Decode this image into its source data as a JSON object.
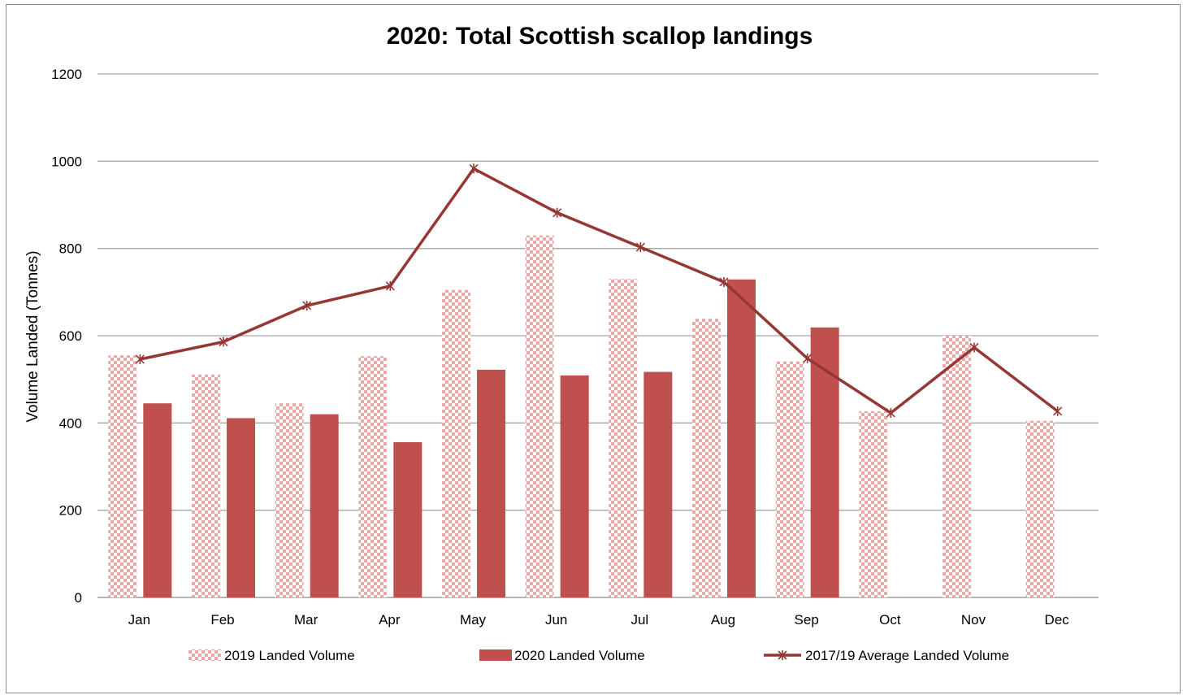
{
  "chart_data": {
    "type": "bar",
    "title": "2020: Total Scottish scallop landings",
    "ylabel": "Volume Landed (Tonnes)",
    "xlabel": "",
    "ylim": [
      0,
      1200
    ],
    "yticks": [
      0,
      200,
      400,
      600,
      800,
      1000,
      1200
    ],
    "grid": true,
    "legend_position": "bottom",
    "categories": [
      "Jan",
      "Feb",
      "Mar",
      "Apr",
      "May",
      "Jun",
      "Jul",
      "Aug",
      "Sep",
      "Oct",
      "Nov",
      "Dec"
    ],
    "series": [
      {
        "name": "2019  Landed Volume",
        "type": "bar",
        "pattern": "checkerboard",
        "color": "#e8a9a7",
        "values": [
          555,
          511,
          445,
          553,
          705,
          830,
          730,
          639,
          541,
          427,
          600,
          405
        ]
      },
      {
        "name": "2020 Landed Volume",
        "type": "bar",
        "color": "#c0504d",
        "values": [
          445,
          411,
          420,
          356,
          522,
          509,
          517,
          729,
          619,
          null,
          null,
          null
        ]
      },
      {
        "name": "2017/19 Average Landed Volume",
        "type": "line",
        "marker": "star",
        "color": "#953735",
        "values": [
          546,
          586,
          669,
          714,
          983,
          882,
          803,
          723,
          548,
          423,
          573,
          427
        ]
      }
    ]
  }
}
